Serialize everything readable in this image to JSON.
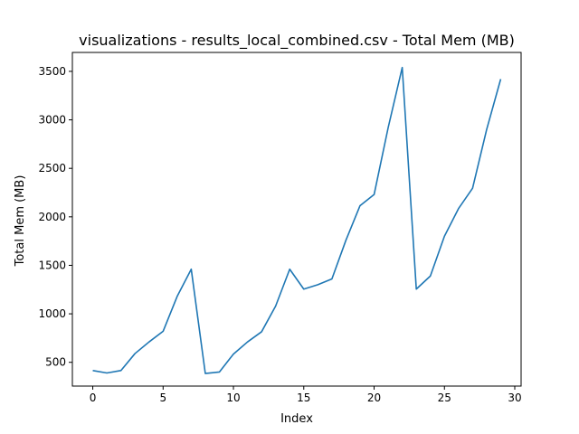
{
  "chart_data": {
    "type": "line",
    "title": "visualizations - results_local_combined.csv - Total Mem (MB)",
    "xlabel": "Index",
    "ylabel": "Total Mem (MB)",
    "xlim": [
      -1.45,
      30.45
    ],
    "ylim": [
      255,
      3695
    ],
    "xticks": [
      0,
      5,
      10,
      15,
      20,
      25,
      30
    ],
    "yticks": [
      500,
      1000,
      1500,
      2000,
      2500,
      3000,
      3500
    ],
    "grid": false,
    "series": [
      {
        "color": "#1f77b4",
        "x": [
          0,
          1,
          2,
          3,
          4,
          5,
          6,
          7,
          8,
          9,
          10,
          11,
          12,
          13,
          14,
          15,
          16,
          17,
          18,
          19,
          20,
          21,
          22,
          23,
          24,
          25,
          26,
          27,
          28,
          29
        ],
        "values": [
          415,
          390,
          415,
          590,
          710,
          820,
          1180,
          1460,
          385,
          400,
          585,
          710,
          815,
          1080,
          1460,
          1255,
          1300,
          1360,
          1760,
          2115,
          2230,
          2920,
          3540,
          1255,
          1390,
          1800,
          2085,
          2295,
          2900,
          3420
        ]
      }
    ]
  }
}
